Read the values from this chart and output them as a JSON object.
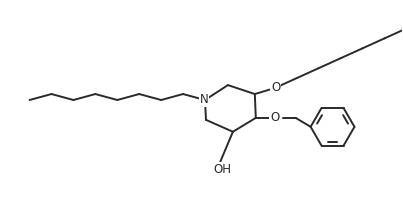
{
  "background_color": "#ffffff",
  "line_color": "#2a2a2a",
  "line_width": 1.4,
  "fig_width": 4.03,
  "fig_height": 1.98,
  "dpi": 100,
  "N_label": "N",
  "OH_label": "OH",
  "O_label": "O"
}
